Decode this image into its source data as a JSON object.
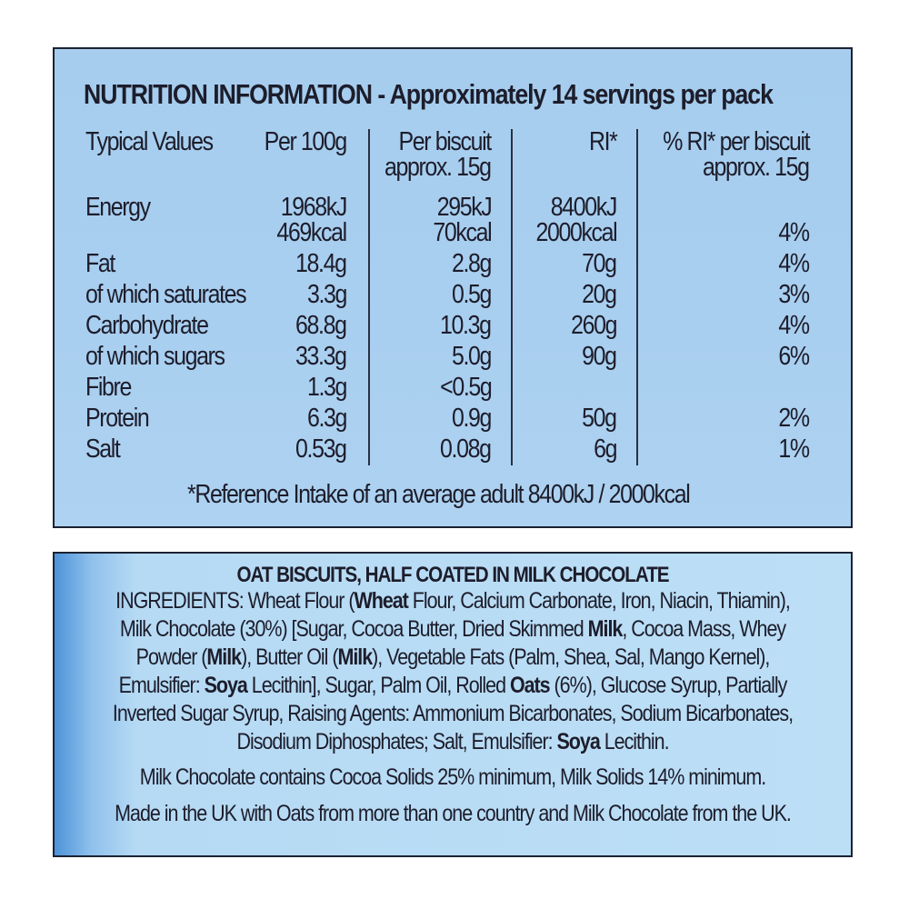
{
  "nutrition": {
    "title": "NUTRITION INFORMATION - Approximately 14 servings per pack",
    "headers": {
      "label": "Typical Values",
      "per100": "Per 100g",
      "perBiscuit1": "Per biscuit",
      "perBiscuit2": "approx. 15g",
      "ri": "RI*",
      "pctRi1": "% RI* per biscuit",
      "pctRi2": "approx. 15g"
    },
    "rows": [
      {
        "label": "Energy",
        "per100": "1968kJ",
        "perBiscuit": "295kJ",
        "ri": "8400kJ",
        "pct": ""
      },
      {
        "label": "",
        "per100": "469kcal",
        "perBiscuit": "70kcal",
        "ri": "2000kcal",
        "pct": "4%"
      },
      {
        "label": "Fat",
        "per100": "18.4g",
        "perBiscuit": "2.8g",
        "ri": "70g",
        "pct": "4%"
      },
      {
        "label": "of which saturates",
        "per100": "3.3g",
        "perBiscuit": "0.5g",
        "ri": "20g",
        "pct": "3%"
      },
      {
        "label": "Carbohydrate",
        "per100": "68.8g",
        "perBiscuit": "10.3g",
        "ri": "260g",
        "pct": "4%"
      },
      {
        "label": "of which sugars",
        "per100": "33.3g",
        "perBiscuit": "5.0g",
        "ri": "90g",
        "pct": "6%"
      },
      {
        "label": "Fibre",
        "per100": "1.3g",
        "perBiscuit": "<0.5g",
        "ri": "",
        "pct": ""
      },
      {
        "label": "Protein",
        "per100": "6.3g",
        "perBiscuit": "0.9g",
        "ri": "50g",
        "pct": "2%"
      },
      {
        "label": "Salt",
        "per100": "0.53g",
        "perBiscuit": "0.08g",
        "ri": "6g",
        "pct": "1%"
      }
    ],
    "footnote": "*Reference Intake of an average adult 8400kJ / 2000kcal"
  },
  "ingredients": {
    "title": "OAT BISCUITS, HALF COATED IN MILK CHOCOLATE",
    "lines": [
      [
        {
          "t": "INGREDIENTS: Wheat Flour (",
          "b": false
        },
        {
          "t": "Wheat",
          "b": true
        },
        {
          "t": " Flour, Calcium Carbonate, Iron, Niacin, Thiamin),",
          "b": false
        }
      ],
      [
        {
          "t": "Milk Chocolate (30%) [Sugar, Cocoa Butter, Dried Skimmed ",
          "b": false
        },
        {
          "t": "Milk",
          "b": true
        },
        {
          "t": ", Cocoa Mass, Whey",
          "b": false
        }
      ],
      [
        {
          "t": "Powder (",
          "b": false
        },
        {
          "t": "Milk",
          "b": true
        },
        {
          "t": "), Butter Oil (",
          "b": false
        },
        {
          "t": "Milk",
          "b": true
        },
        {
          "t": "), Vegetable Fats (Palm, Shea, Sal, Mango Kernel),",
          "b": false
        }
      ],
      [
        {
          "t": "Emulsifier: ",
          "b": false
        },
        {
          "t": "Soya",
          "b": true
        },
        {
          "t": " Lecithin], Sugar, Palm Oil, Rolled ",
          "b": false
        },
        {
          "t": "Oats",
          "b": true
        },
        {
          "t": " (6%), Glucose Syrup, Partially",
          "b": false
        }
      ],
      [
        {
          "t": "Inverted Sugar Syrup, Raising Agents: Ammonium Bicarbonates, Sodium Bicarbonates,",
          "b": false
        }
      ],
      [
        {
          "t": "Disodium Diphosphates; Salt, Emulsifier: ",
          "b": false
        },
        {
          "t": "Soya",
          "b": true
        },
        {
          "t": " Lecithin.",
          "b": false
        }
      ]
    ],
    "cocoa_note": "Milk Chocolate contains Cocoa Solids 25% minimum, Milk Solids 14% minimum.",
    "origin_note": "Made in the UK with Oats from more than one country and Milk Chocolate from the UK."
  }
}
